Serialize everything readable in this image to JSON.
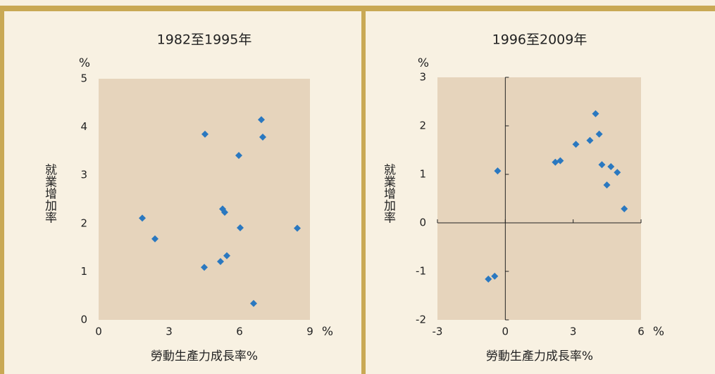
{
  "chart_data": [
    {
      "type": "scatter",
      "title": "1982至1995年",
      "y_unit": "%",
      "y_label": "就業增加率",
      "x_label": "勞動生產力成長率%",
      "x_unit": "%",
      "color": "#2a78c0",
      "axis_at_zero": false,
      "x": [
        1.86,
        2.4,
        4.53,
        4.5,
        5.19,
        5.28,
        5.37,
        5.46,
        5.97,
        6.03,
        6.6,
        6.93,
        6.99,
        8.46
      ],
      "y": [
        2.11,
        1.68,
        3.85,
        1.09,
        1.21,
        2.3,
        2.23,
        1.33,
        3.41,
        1.91,
        0.34,
        4.15,
        3.79,
        1.9
      ],
      "xlim": [
        0,
        9
      ],
      "ylim": [
        0,
        5
      ],
      "xticks": [
        0,
        3,
        6,
        9
      ],
      "yticks": [
        0,
        1,
        2,
        3,
        4,
        5
      ]
    },
    {
      "type": "scatter",
      "title": "1996至2009年",
      "y_unit": "%",
      "y_label": "就業增加率",
      "x_label": "勞動生產力成長率%",
      "x_unit": "%",
      "color": "#2a78c0",
      "axis_at_zero": true,
      "x": [
        -0.34,
        -0.75,
        -0.47,
        2.21,
        2.43,
        3.12,
        3.74,
        3.99,
        4.15,
        4.27,
        4.67,
        4.95,
        4.49,
        5.26
      ],
      "y": [
        1.07,
        -1.16,
        -1.1,
        1.25,
        1.28,
        1.62,
        1.7,
        2.25,
        1.83,
        1.2,
        1.16,
        1.04,
        0.78,
        0.29
      ],
      "xlim": [
        -3,
        6
      ],
      "ylim": [
        -2,
        3
      ],
      "xticks": [
        -3,
        0,
        3,
        6
      ],
      "yticks": [
        -2,
        -1,
        0,
        1,
        2,
        3
      ]
    }
  ]
}
